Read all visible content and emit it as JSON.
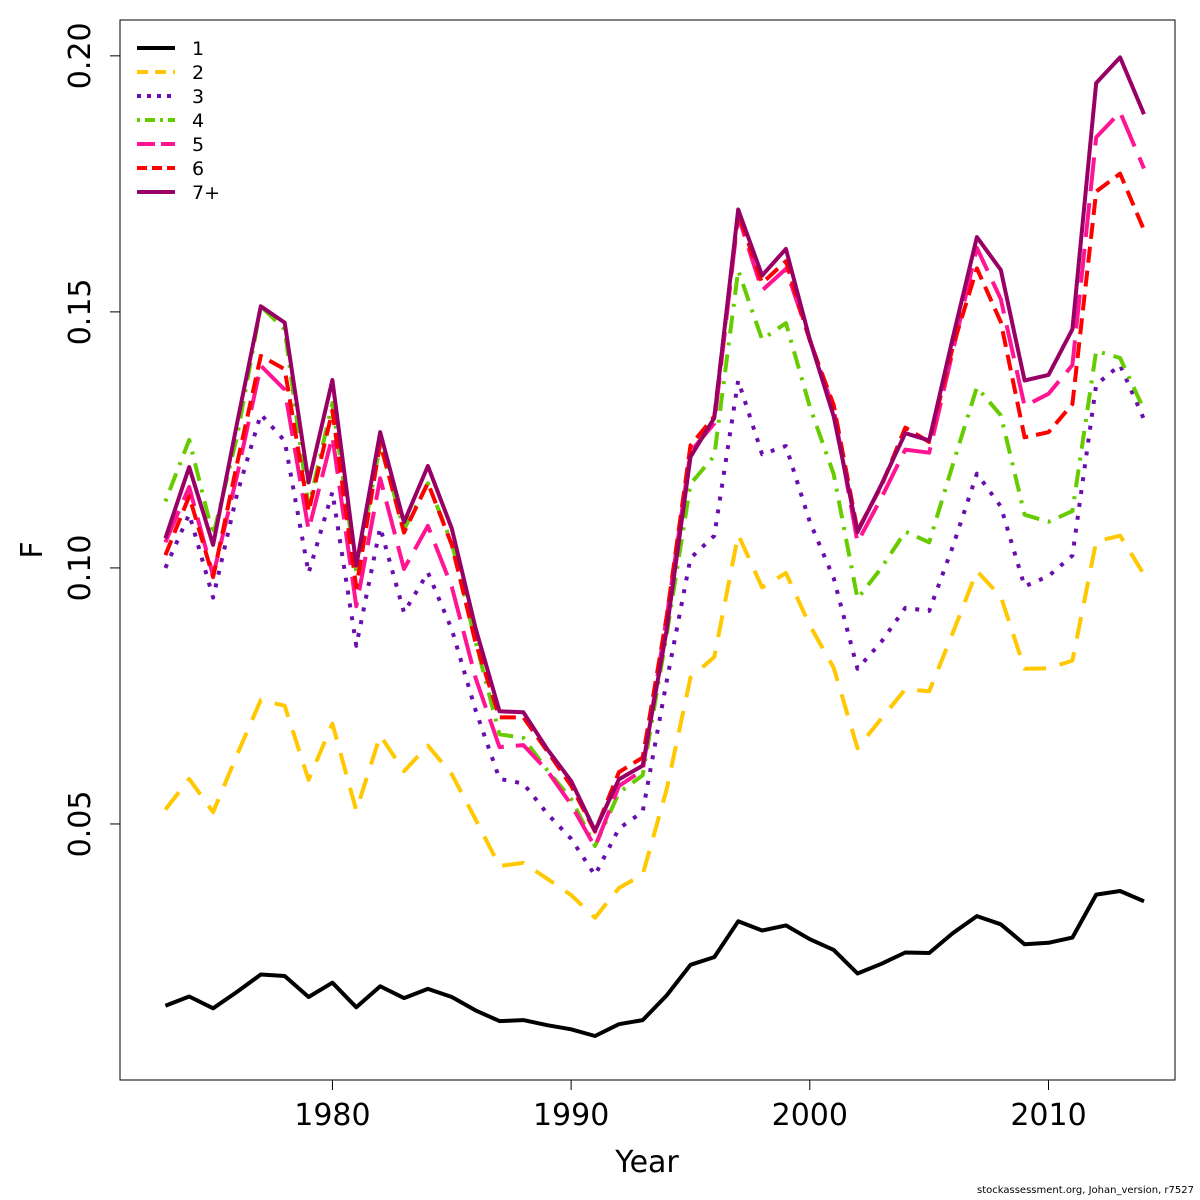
{
  "chart_data": {
    "type": "line",
    "title": "",
    "xlabel": "Year",
    "ylabel": "F",
    "xlim": [
      1971.1,
      2015.3
    ],
    "ylim": [
      0.0,
      0.207
    ],
    "xticks": [
      1980,
      1990,
      2000,
      2010
    ],
    "yticks": [
      0.05,
      0.1,
      0.15,
      0.2
    ],
    "ytick_labels": [
      "0.05",
      "0.10",
      "0.15",
      "0.20"
    ],
    "legend_position": "top-left",
    "grid": false,
    "x": [
      1973,
      1974,
      1975,
      1976,
      1977,
      1978,
      1979,
      1980,
      1981,
      1982,
      1983,
      1984,
      1985,
      1986,
      1987,
      1988,
      1989,
      1990,
      1991,
      1992,
      1993,
      1994,
      1995,
      1996,
      1997,
      1998,
      1999,
      2000,
      2001,
      2002,
      2003,
      2004,
      2005,
      2006,
      2007,
      2008,
      2009,
      2010,
      2011,
      2012,
      2013,
      2014
    ],
    "series": [
      {
        "name": "1",
        "color": "#000000",
        "dash": "solid",
        "values": [
          0.0145,
          0.0163,
          0.014,
          0.0172,
          0.0206,
          0.0203,
          0.0162,
          0.019,
          0.0142,
          0.0183,
          0.016,
          0.0178,
          0.0162,
          0.0136,
          0.0115,
          0.0117,
          0.0107,
          0.0099,
          0.0086,
          0.0109,
          0.0117,
          0.0165,
          0.0225,
          0.024,
          0.031,
          0.0292,
          0.0302,
          0.0275,
          0.0254,
          0.0208,
          0.0227,
          0.0249,
          0.0248,
          0.0287,
          0.032,
          0.0304,
          0.0265,
          0.0268,
          0.0278,
          0.0362,
          0.0369,
          0.0349
        ]
      },
      {
        "name": "2",
        "color": "#ffc800",
        "dash": "long",
        "values": [
          0.0528,
          0.0588,
          0.0523,
          0.0635,
          0.0742,
          0.0731,
          0.0586,
          0.0696,
          0.0526,
          0.0673,
          0.0603,
          0.0653,
          0.0597,
          0.0509,
          0.0418,
          0.0424,
          0.0393,
          0.0361,
          0.0317,
          0.0375,
          0.0401,
          0.0567,
          0.0786,
          0.0826,
          0.1065,
          0.0962,
          0.099,
          0.0888,
          0.0805,
          0.0648,
          0.0706,
          0.0763,
          0.0759,
          0.0874,
          0.0994,
          0.0944,
          0.0803,
          0.0804,
          0.0819,
          0.1052,
          0.1063,
          0.0987
        ]
      },
      {
        "name": "3",
        "color": "#6a0dad",
        "dash": "dot",
        "values": [
          0.1,
          0.1105,
          0.0942,
          0.1144,
          0.13,
          0.1248,
          0.099,
          0.1148,
          0.0848,
          0.1079,
          0.0913,
          0.0991,
          0.088,
          0.0722,
          0.0588,
          0.0579,
          0.052,
          0.0471,
          0.04,
          0.0491,
          0.0524,
          0.0778,
          0.1019,
          0.1063,
          0.1366,
          0.1222,
          0.1238,
          0.109,
          0.098,
          0.0803,
          0.0856,
          0.0922,
          0.0916,
          0.1043,
          0.1184,
          0.112,
          0.0964,
          0.0984,
          0.1024,
          0.1358,
          0.1396,
          0.129
        ]
      },
      {
        "name": "4",
        "color": "#66cc00",
        "dash": "dotdash",
        "values": [
          0.113,
          0.125,
          0.1063,
          0.1256,
          0.1511,
          0.1466,
          0.1119,
          0.1322,
          0.0992,
          0.1241,
          0.1075,
          0.1165,
          0.1049,
          0.0856,
          0.0675,
          0.0668,
          0.0605,
          0.0549,
          0.0457,
          0.0561,
          0.0595,
          0.0869,
          0.1164,
          0.1219,
          0.1581,
          0.1446,
          0.1478,
          0.1315,
          0.1183,
          0.094,
          0.1,
          0.1071,
          0.105,
          0.1203,
          0.1353,
          0.1298,
          0.1104,
          0.109,
          0.1111,
          0.1424,
          0.141,
          0.1309
        ]
      },
      {
        "name": "5",
        "color": "#ff1493",
        "dash": "longdash",
        "values": [
          0.105,
          0.1158,
          0.0985,
          0.118,
          0.1395,
          0.1348,
          0.1074,
          0.1257,
          0.0925,
          0.1175,
          0.0998,
          0.1082,
          0.0963,
          0.0785,
          0.065,
          0.0654,
          0.0604,
          0.0538,
          0.0455,
          0.0574,
          0.0605,
          0.0902,
          0.1227,
          0.1282,
          0.1687,
          0.1542,
          0.1584,
          0.1446,
          0.131,
          0.105,
          0.1137,
          0.1231,
          0.1225,
          0.1425,
          0.1625,
          0.1525,
          0.1316,
          0.134,
          0.1396,
          0.1841,
          0.189,
          0.178
        ]
      },
      {
        "name": "6",
        "color": "#ff0000",
        "dash": "dash",
        "values": [
          0.1025,
          0.114,
          0.0982,
          0.1203,
          0.1414,
          0.1388,
          0.111,
          0.1307,
          0.0962,
          0.1244,
          0.1069,
          0.1166,
          0.1045,
          0.0854,
          0.0708,
          0.0708,
          0.0642,
          0.0575,
          0.0485,
          0.0601,
          0.063,
          0.0904,
          0.1239,
          0.1296,
          0.1693,
          0.1556,
          0.1599,
          0.1444,
          0.1318,
          0.1073,
          0.116,
          0.1274,
          0.1246,
          0.1433,
          0.1585,
          0.148,
          0.1255,
          0.1265,
          0.132,
          0.1735,
          0.177,
          0.166
        ]
      },
      {
        "name": "7+",
        "color": "#990066",
        "dash": "solid",
        "values": [
          0.1058,
          0.1197,
          0.1045,
          0.1282,
          0.1511,
          0.1479,
          0.1167,
          0.1367,
          0.1005,
          0.1265,
          0.1089,
          0.1199,
          0.1077,
          0.0882,
          0.072,
          0.0718,
          0.0646,
          0.0584,
          0.0487,
          0.0587,
          0.0614,
          0.0878,
          0.1217,
          0.1293,
          0.17,
          0.1571,
          0.1623,
          0.1446,
          0.1296,
          0.107,
          0.1163,
          0.1263,
          0.1249,
          0.1451,
          0.1646,
          0.1582,
          0.1366,
          0.1377,
          0.1466,
          0.1947,
          0.1997,
          0.1886
        ]
      }
    ]
  },
  "footer": {
    "credit": "stockassessment.org, Johan_version, r7527"
  }
}
